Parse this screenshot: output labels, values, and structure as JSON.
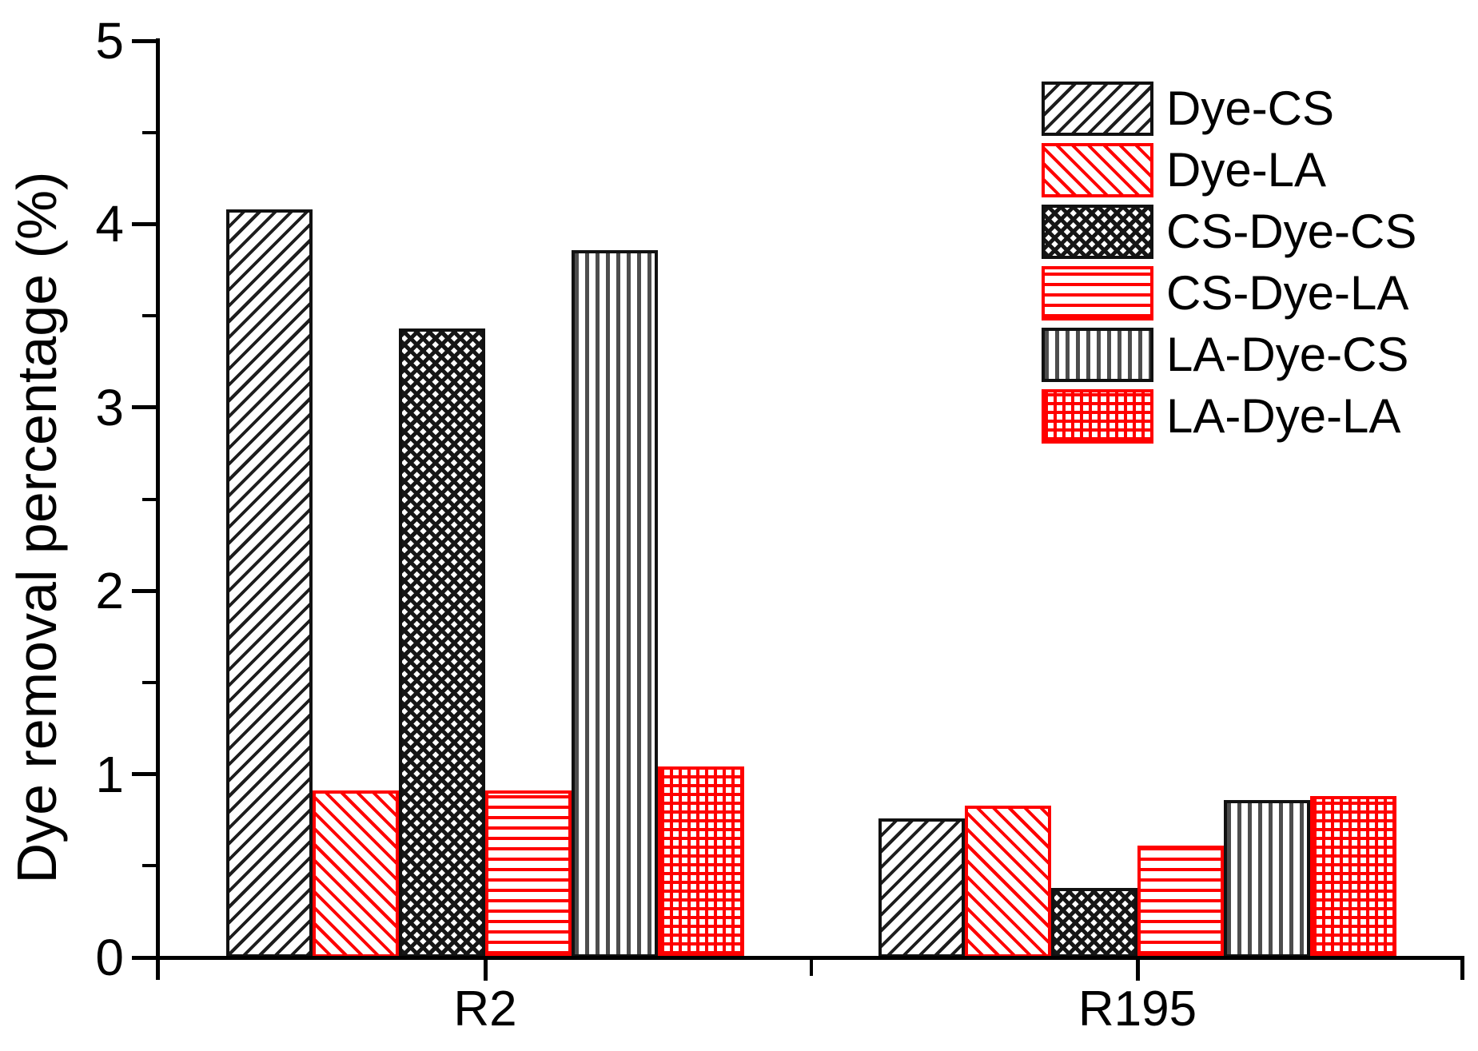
{
  "chart_data": {
    "type": "bar",
    "title": "",
    "xlabel": "",
    "ylabel": "Dye removal percentage (%)",
    "categories": [
      "R2",
      "R195"
    ],
    "series": [
      {
        "name": "Dye-CS",
        "pattern": "diagonal-forward-black",
        "color": "#111111",
        "values": [
          4.08,
          0.76
        ]
      },
      {
        "name": "Dye-LA",
        "pattern": "diagonal-back-red",
        "color": "#ff0000",
        "values": [
          0.91,
          0.83
        ]
      },
      {
        "name": "CS-Dye-CS",
        "pattern": "crosshatch-black",
        "color": "#111111",
        "values": [
          3.43,
          0.38
        ]
      },
      {
        "name": "CS-Dye-LA",
        "pattern": "horizontal-red",
        "color": "#ff0000",
        "values": [
          0.91,
          0.61
        ]
      },
      {
        "name": "LA-Dye-CS",
        "pattern": "vertical-black",
        "color": "#111111",
        "values": [
          3.86,
          0.86
        ]
      },
      {
        "name": "LA-Dye-LA",
        "pattern": "grid-red",
        "color": "#ff0000",
        "values": [
          1.04,
          0.88
        ]
      }
    ],
    "ylim": [
      0,
      5
    ],
    "yticks": [
      "0",
      "1",
      "2",
      "3",
      "4",
      "5"
    ],
    "minor_ytick_step": 0.5,
    "grid": "off",
    "legend_position": "top-right",
    "colors": {
      "black": "#111111",
      "red": "#ff0000",
      "gray_lines": "#4d4d4d",
      "background": "#ffffff"
    }
  }
}
